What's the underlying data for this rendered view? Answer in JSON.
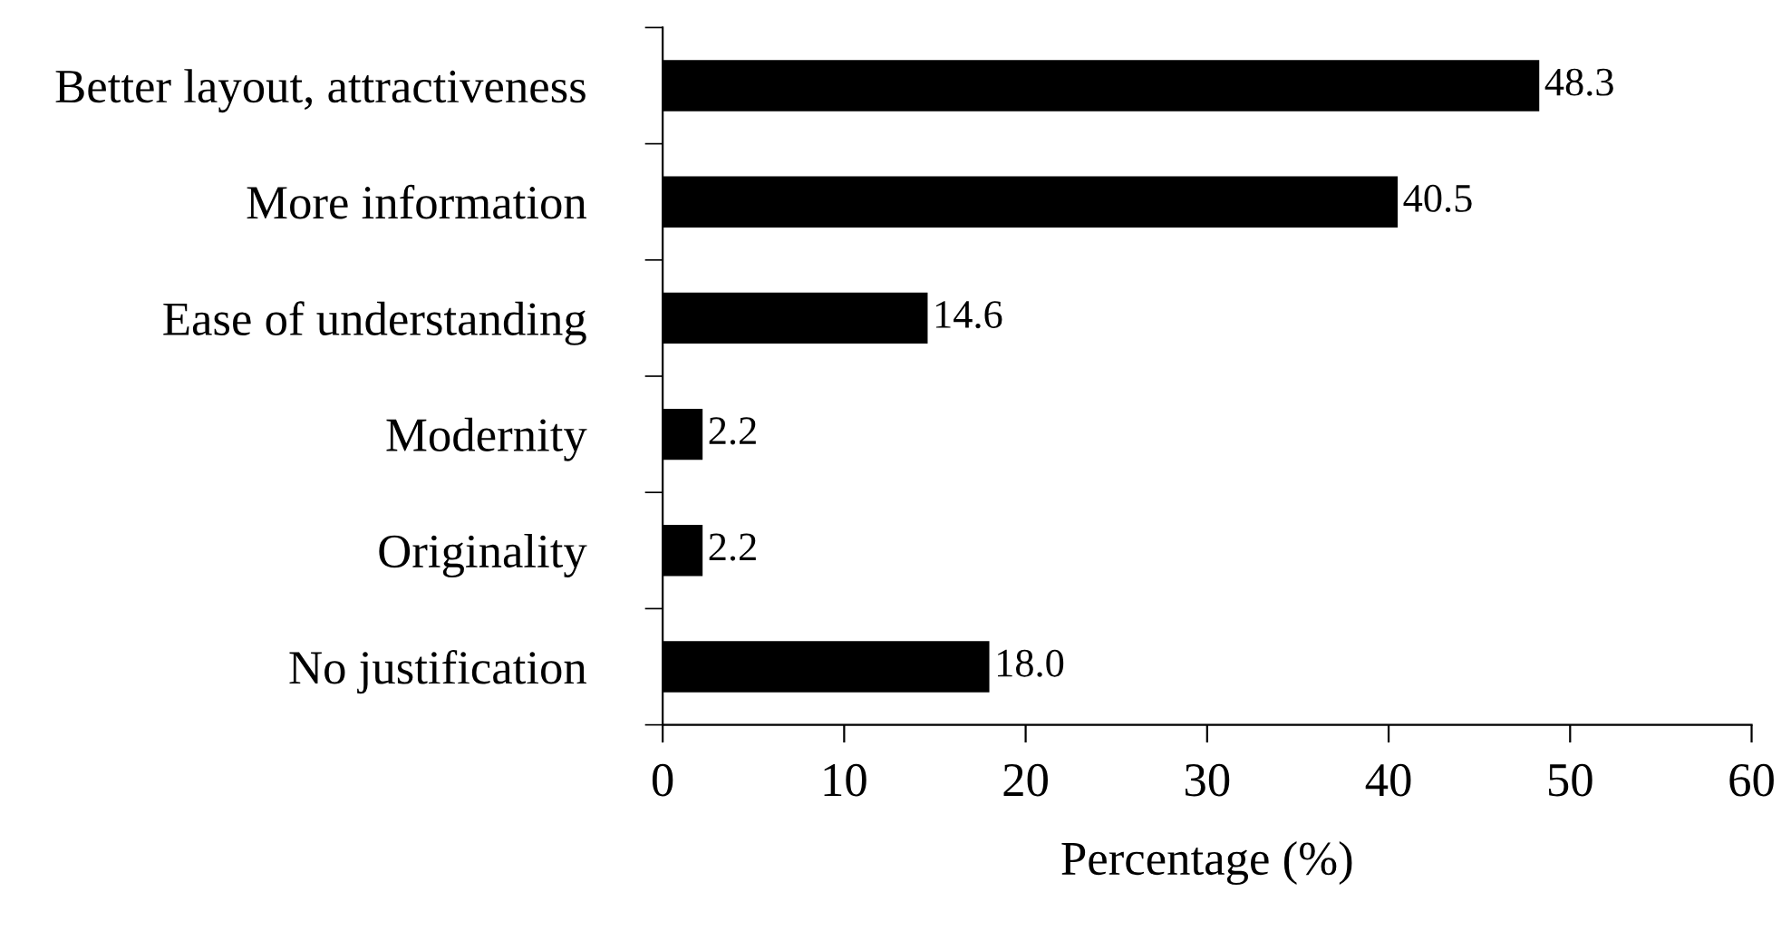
{
  "chart_data": {
    "type": "bar",
    "orientation": "horizontal",
    "categories": [
      "Better layout, attractiveness",
      "More information",
      "Ease of understanding",
      "Modernity",
      "Originality",
      "No justification"
    ],
    "values": [
      48.3,
      40.5,
      14.6,
      2.2,
      2.2,
      18.0
    ],
    "value_labels": [
      "48.3",
      "40.5",
      "14.6",
      "2.2",
      "2.2",
      "18.0"
    ],
    "color": "#000000",
    "xlabel": "Percentage (%)",
    "xlim": [
      0,
      60
    ],
    "xticks": [
      0,
      10,
      20,
      30,
      40,
      50,
      60
    ],
    "grid": false,
    "legend": false
  }
}
